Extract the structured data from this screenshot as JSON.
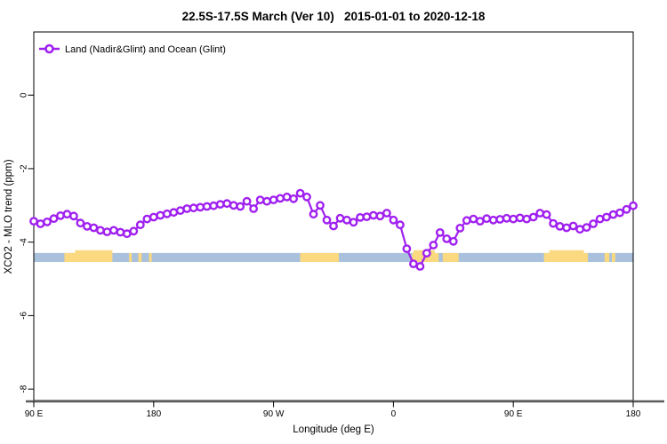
{
  "title": "22.5S-17.5S March (Ver 10)   2015-01-01 to 2020-12-18",
  "legend": {
    "label": "Land (Nadir&Glint) and Ocean (Glint)",
    "marker": "open-circle-on-line",
    "color": "#A020F0"
  },
  "axes": {
    "xlabel": "Longitude (deg E)",
    "ylabel": "XCO2 - MLO trend (ppm)"
  },
  "chart_data": {
    "type": "line",
    "title": "22.5S-17.5S March (Ver 10)   2015-01-01 to 2020-12-18",
    "xlabel": "Longitude (deg E)",
    "ylabel": "XCO2 - MLO trend (ppm)",
    "line_color": "#A020F0",
    "marker": "open-circle",
    "grid": false,
    "legend_position": "top-left-inside",
    "x_axis_note": "longitude unwrapped eastward from 90E: 90E -> 180 -> 90W -> 0 -> 90E -> 180 (values 90..540)",
    "xlim": [
      90,
      540
    ],
    "ylim": [
      -8.31,
      1.72
    ],
    "x_ticks": [
      {
        "pos": 90,
        "label": "90 E"
      },
      {
        "pos": 180,
        "label": "180"
      },
      {
        "pos": 270,
        "label": "90 W"
      },
      {
        "pos": 360,
        "label": "0"
      },
      {
        "pos": 450,
        "label": "90 E"
      },
      {
        "pos": 540,
        "label": "180"
      }
    ],
    "y_ticks": [
      {
        "pos": 0,
        "label": "0"
      },
      {
        "pos": -2,
        "label": "-2"
      },
      {
        "pos": -4,
        "label": "-4"
      },
      {
        "pos": -6,
        "label": "-6"
      },
      {
        "pos": -8,
        "label": "-8"
      }
    ],
    "series": [
      {
        "name": "Land (Nadir&Glint) and Ocean (Glint)",
        "x_step_deg": 5,
        "x": [
          90,
          95,
          100,
          105,
          110,
          115,
          120,
          125,
          130,
          135,
          140,
          145,
          150,
          155,
          160,
          165,
          170,
          175,
          180,
          185,
          190,
          195,
          200,
          205,
          210,
          215,
          220,
          225,
          230,
          235,
          240,
          245,
          250,
          255,
          260,
          265,
          270,
          275,
          280,
          285,
          290,
          295,
          300,
          305,
          310,
          315,
          320,
          325,
          330,
          335,
          340,
          345,
          350,
          355,
          360,
          365,
          370,
          375,
          380,
          385,
          390,
          395,
          400,
          405,
          410,
          415,
          420,
          425,
          430,
          435,
          440,
          445,
          450,
          455,
          460,
          465,
          470,
          475,
          480,
          485,
          490,
          495,
          500,
          505,
          510,
          515,
          520,
          525,
          530,
          535,
          540
        ],
        "y": [
          -3.43,
          -3.5,
          -3.45,
          -3.36,
          -3.28,
          -3.24,
          -3.29,
          -3.48,
          -3.57,
          -3.61,
          -3.68,
          -3.72,
          -3.68,
          -3.73,
          -3.77,
          -3.7,
          -3.53,
          -3.37,
          -3.32,
          -3.27,
          -3.23,
          -3.19,
          -3.14,
          -3.09,
          -3.07,
          -3.05,
          -3.03,
          -3.01,
          -2.97,
          -2.95,
          -3.0,
          -3.03,
          -2.89,
          -3.09,
          -2.85,
          -2.89,
          -2.85,
          -2.81,
          -2.77,
          -2.82,
          -2.67,
          -2.77,
          -3.24,
          -3.0,
          -3.4,
          -3.56,
          -3.35,
          -3.4,
          -3.46,
          -3.33,
          -3.31,
          -3.27,
          -3.29,
          -3.21,
          -3.4,
          -3.53,
          -4.18,
          -4.59,
          -4.66,
          -4.3,
          -4.08,
          -3.74,
          -3.91,
          -3.98,
          -3.62,
          -3.41,
          -3.37,
          -3.43,
          -3.36,
          -3.4,
          -3.38,
          -3.35,
          -3.37,
          -3.34,
          -3.37,
          -3.32,
          -3.21,
          -3.25,
          -3.49,
          -3.57,
          -3.61,
          -3.56,
          -3.65,
          -3.6,
          -3.5,
          -3.37,
          -3.32,
          -3.25,
          -3.2,
          -3.11,
          -3.01
        ]
      }
    ],
    "surface_band": {
      "description": "land(yellow)/ocean(blue) strip along longitude",
      "value_top": -4.295,
      "value_bottom": -4.54,
      "bump_top": -4.22,
      "ocean_color": "#A9C1DC",
      "land_color": "#FBD980",
      "land_segments": [
        [
          113,
          149
        ],
        [
          161.5,
          163.5
        ],
        [
          168.5,
          171
        ],
        [
          176.5,
          178.5
        ],
        [
          290,
          319
        ],
        [
          374,
          394
        ],
        [
          397,
          409
        ],
        [
          473,
          506
        ],
        [
          518.5,
          522
        ],
        [
          524,
          526.5
        ]
      ],
      "land_bumps": [
        [
          121,
          149
        ],
        [
          375,
          391
        ],
        [
          477,
          503
        ]
      ]
    },
    "baseline": {
      "value": -8.31,
      "color": "#5C5C5C",
      "width": 2.5
    }
  }
}
